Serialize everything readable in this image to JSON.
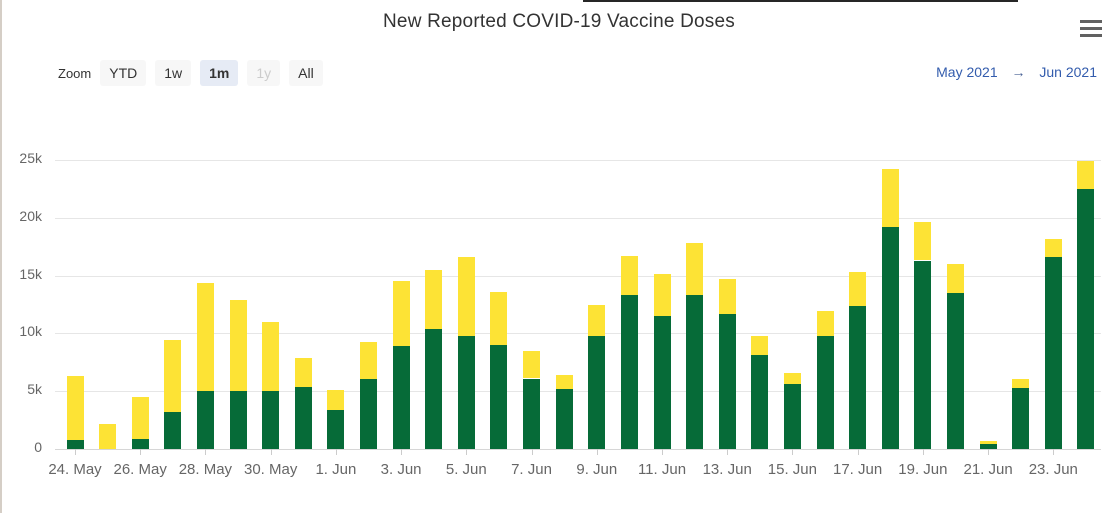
{
  "header": {
    "title": "New Reported COVID-19 Vaccine Doses"
  },
  "toolbar": {
    "zoom_label": "Zoom",
    "buttons": [
      {
        "label": "YTD",
        "state": "normal"
      },
      {
        "label": "1w",
        "state": "normal"
      },
      {
        "label": "1m",
        "state": "selected"
      },
      {
        "label": "1y",
        "state": "disabled"
      },
      {
        "label": "All",
        "state": "normal"
      }
    ]
  },
  "range_display": {
    "from": "May 2021",
    "arrow": "→",
    "to": "Jun 2021"
  },
  "menu_icon": "hamburger-icon",
  "colors": {
    "series_green": "#066b38",
    "series_yellow": "#fde335",
    "grid": "#e6e6e6",
    "axis_line": "#d6d6d6",
    "tick": "#cccccc",
    "axis_label": "#666666",
    "title_text": "#333333",
    "range_link": "#335cad",
    "button_bg": "#f7f7f7",
    "button_selected_bg": "#e6ebf5",
    "button_disabled_text": "#cccccc",
    "menu_icon_color": "#616161"
  },
  "chart_data": {
    "type": "bar",
    "stacked": true,
    "title": "New Reported COVID-19 Vaccine Doses",
    "xlabel": "",
    "ylabel": "",
    "ylim": [
      0,
      25000
    ],
    "grid": true,
    "legend": "none",
    "y_ticks": [
      {
        "value": 0,
        "label": "0"
      },
      {
        "value": 5000,
        "label": "5k"
      },
      {
        "value": 10000,
        "label": "10k"
      },
      {
        "value": 15000,
        "label": "15k"
      },
      {
        "value": 20000,
        "label": "20k"
      },
      {
        "value": 25000,
        "label": "25k"
      }
    ],
    "categories": [
      "24. May",
      "25. May",
      "26. May",
      "27. May",
      "28. May",
      "29. May",
      "30. May",
      "31. May",
      "1. Jun",
      "2. Jun",
      "3. Jun",
      "4. Jun",
      "5. Jun",
      "6. Jun",
      "7. Jun",
      "8. Jun",
      "9. Jun",
      "10. Jun",
      "11. Jun",
      "12. Jun",
      "13. Jun",
      "14. Jun",
      "15. Jun",
      "16. Jun",
      "17. Jun",
      "18. Jun",
      "19. Jun",
      "20. Jun",
      "21. Jun",
      "22. Jun",
      "23. Jun",
      "24. Jun"
    ],
    "x_tick_labels": [
      "24. May",
      "26. May",
      "28. May",
      "30. May",
      "1. Jun",
      "3. Jun",
      "5. Jun",
      "7. Jun",
      "9. Jun",
      "11. Jun",
      "13. Jun",
      "15. Jun",
      "17. Jun",
      "19. Jun",
      "21. Jun",
      "23. Jun"
    ],
    "series": [
      {
        "name": "green",
        "color": "#066b38",
        "values": [
          800,
          0,
          900,
          3200,
          5000,
          5000,
          5000,
          5400,
          3400,
          6100,
          8900,
          10400,
          9800,
          9000,
          6100,
          5200,
          9800,
          13300,
          11500,
          13300,
          11700,
          8100,
          5600,
          9800,
          12400,
          19200,
          16300,
          13500,
          400,
          5300,
          16600,
          22500
        ]
      },
      {
        "name": "yellow",
        "color": "#fde335",
        "values": [
          5500,
          2200,
          3600,
          6200,
          9400,
          7900,
          6000,
          2500,
          1700,
          3200,
          5600,
          5100,
          6800,
          4600,
          2400,
          1200,
          2700,
          3400,
          3600,
          4500,
          3000,
          1700,
          1000,
          2100,
          2900,
          5000,
          3300,
          2500,
          300,
          800,
          1600,
          2400
        ]
      }
    ]
  }
}
